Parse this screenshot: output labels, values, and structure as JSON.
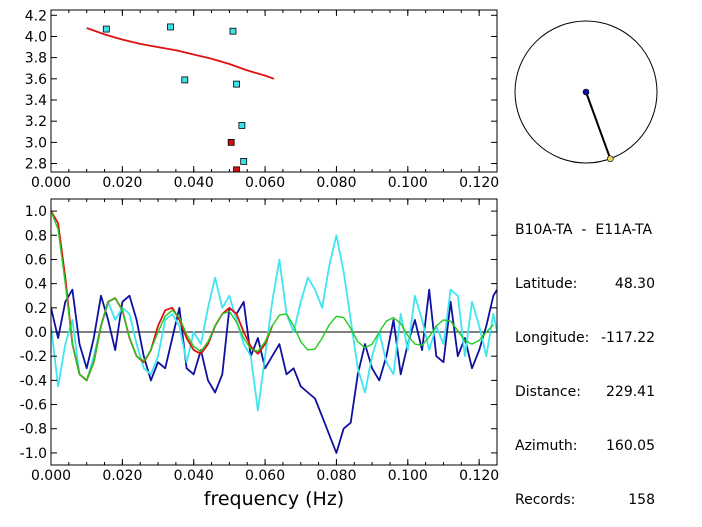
{
  "info": {
    "pair_label": "B10A-TA  -  E11A-TA",
    "rows": [
      {
        "key": "Latitude:",
        "value": "48.30"
      },
      {
        "key": "Longitude:",
        "value": "-117.22"
      },
      {
        "key": "Distance:",
        "value": "229.41"
      },
      {
        "key": "Azimuth:",
        "value": "160.05"
      },
      {
        "key": "Records:",
        "value": "158"
      }
    ]
  },
  "colors": {
    "cyan": "#3fe6f0",
    "red": "#e01010",
    "green": "#20cc20",
    "blue": "#1010a0",
    "marker_cyan": "#40e0e8",
    "marker_red": "#d01010",
    "gold": "#e8d060"
  },
  "chart_data": [
    {
      "type": "scatter",
      "title": "",
      "xlabel": "",
      "ylabel": "",
      "xlim": [
        0.0,
        0.125
      ],
      "ylim": [
        2.72,
        4.25
      ],
      "xticks": [
        "0.000",
        "0.020",
        "0.040",
        "0.060",
        "0.080",
        "0.100",
        "0.120"
      ],
      "yticks": [
        "2.8",
        "3.0",
        "3.2",
        "3.4",
        "3.6",
        "3.8",
        "4.0",
        "4.2"
      ],
      "series": [
        {
          "kind": "markers",
          "color": "cyan",
          "x": [
            0.0155,
            0.0335,
            0.051,
            0.0375,
            0.052,
            0.0535,
            0.054
          ],
          "y": [
            4.07,
            4.09,
            4.05,
            3.59,
            3.55,
            3.16,
            2.82
          ]
        },
        {
          "kind": "markers",
          "color": "red",
          "x": [
            0.0505,
            0.052
          ],
          "y": [
            3.0,
            2.74
          ]
        },
        {
          "kind": "line",
          "color": "red",
          "x": [
            0.01,
            0.015,
            0.02,
            0.025,
            0.03,
            0.035,
            0.04,
            0.045,
            0.05,
            0.055,
            0.06,
            0.0625
          ],
          "y": [
            4.08,
            4.02,
            3.97,
            3.93,
            3.9,
            3.87,
            3.83,
            3.79,
            3.74,
            3.68,
            3.63,
            3.6
          ]
        }
      ]
    },
    {
      "type": "line",
      "title": "",
      "xlabel": "frequency (Hz)",
      "ylabel": "",
      "xlim": [
        0.0,
        0.125
      ],
      "ylim": [
        -1.1,
        1.1
      ],
      "xticks": [
        "0.000",
        "0.020",
        "0.040",
        "0.060",
        "0.080",
        "0.100",
        "0.120"
      ],
      "yticks": [
        "1.0",
        "0.8",
        "0.6",
        "0.4",
        "0.2",
        "0.0",
        "-0.2",
        "-0.4",
        "-0.6",
        "-0.8",
        "-1.0"
      ],
      "zero_line": true,
      "series": [
        {
          "color": "blue",
          "x": [
            0.0,
            0.002,
            0.004,
            0.006,
            0.008,
            0.01,
            0.012,
            0.014,
            0.016,
            0.018,
            0.02,
            0.022,
            0.024,
            0.026,
            0.028,
            0.03,
            0.032,
            0.034,
            0.036,
            0.038,
            0.04,
            0.042,
            0.044,
            0.046,
            0.048,
            0.05,
            0.052,
            0.054,
            0.056,
            0.058,
            0.06,
            0.062,
            0.064,
            0.066,
            0.068,
            0.07,
            0.072,
            0.074,
            0.076,
            0.078,
            0.08,
            0.082,
            0.084,
            0.086,
            0.088,
            0.09,
            0.092,
            0.094,
            0.096,
            0.098,
            0.1,
            0.102,
            0.104,
            0.106,
            0.108,
            0.11,
            0.112,
            0.114,
            0.116,
            0.118,
            0.12,
            0.122,
            0.124,
            0.125
          ],
          "y": [
            0.2,
            -0.05,
            0.25,
            0.35,
            -0.1,
            -0.3,
            -0.05,
            0.3,
            0.1,
            -0.15,
            0.25,
            0.3,
            0.1,
            -0.2,
            -0.4,
            -0.25,
            -0.3,
            -0.05,
            0.2,
            -0.3,
            -0.35,
            -0.15,
            -0.4,
            -0.5,
            -0.35,
            0.2,
            0.15,
            0.25,
            -0.2,
            -0.05,
            -0.3,
            -0.2,
            -0.1,
            -0.35,
            -0.3,
            -0.45,
            -0.5,
            -0.55,
            -0.7,
            -0.85,
            -1.0,
            -0.8,
            -0.75,
            -0.35,
            -0.1,
            -0.3,
            -0.4,
            -0.2,
            0.1,
            -0.35,
            -0.1,
            0.1,
            -0.15,
            0.35,
            -0.2,
            -0.25,
            0.25,
            -0.2,
            -0.05,
            -0.3,
            -0.15,
            0.05,
            0.3,
            0.35
          ]
        },
        {
          "color": "cyan",
          "x": [
            0.0,
            0.002,
            0.004,
            0.006,
            0.008,
            0.01,
            0.012,
            0.014,
            0.016,
            0.018,
            0.02,
            0.022,
            0.024,
            0.026,
            0.028,
            0.03,
            0.032,
            0.034,
            0.036,
            0.038,
            0.04,
            0.042,
            0.044,
            0.046,
            0.048,
            0.05,
            0.052,
            0.054,
            0.056,
            0.058,
            0.06,
            0.062,
            0.064,
            0.066,
            0.068,
            0.07,
            0.072,
            0.074,
            0.076,
            0.078,
            0.08,
            0.082,
            0.084,
            0.086,
            0.088,
            0.09,
            0.092,
            0.094,
            0.096,
            0.098,
            0.1,
            0.102,
            0.104,
            0.106,
            0.108,
            0.11,
            0.112,
            0.114,
            0.116,
            0.118,
            0.12,
            0.122,
            0.124,
            0.125
          ],
          "y": [
            0.05,
            -0.45,
            -0.1,
            0.1,
            -0.35,
            -0.4,
            -0.2,
            0.05,
            0.25,
            0.1,
            0.2,
            0.15,
            -0.1,
            -0.3,
            -0.35,
            -0.2,
            0.1,
            0.15,
            0.05,
            -0.25,
            0.0,
            -0.1,
            0.2,
            0.45,
            0.2,
            0.3,
            0.1,
            -0.1,
            -0.2,
            -0.65,
            -0.2,
            0.25,
            0.6,
            0.15,
            0.0,
            0.25,
            0.45,
            0.35,
            0.2,
            0.55,
            0.8,
            0.5,
            0.1,
            -0.3,
            -0.5,
            -0.2,
            0.0,
            -0.25,
            -0.35,
            0.15,
            -0.15,
            0.3,
            0.1,
            -0.15,
            0.05,
            -0.1,
            0.35,
            0.3,
            -0.2,
            0.25,
            0.05,
            -0.2,
            0.15,
            0.0
          ]
        },
        {
          "color": "red",
          "x": [
            0.0,
            0.002,
            0.004,
            0.006,
            0.008,
            0.01,
            0.012,
            0.014,
            0.016,
            0.018,
            0.02,
            0.022,
            0.024,
            0.026,
            0.028,
            0.03,
            0.032,
            0.034,
            0.036,
            0.038,
            0.04,
            0.042,
            0.044,
            0.046,
            0.048,
            0.05,
            0.052,
            0.054,
            0.056,
            0.058,
            0.06,
            0.062
          ],
          "y": [
            1.0,
            0.9,
            0.45,
            -0.1,
            -0.35,
            -0.4,
            -0.25,
            0.05,
            0.25,
            0.28,
            0.18,
            -0.05,
            -0.2,
            -0.25,
            -0.15,
            0.05,
            0.18,
            0.2,
            0.1,
            -0.05,
            -0.15,
            -0.18,
            -0.1,
            0.05,
            0.15,
            0.2,
            0.15,
            0.0,
            -0.12,
            -0.18,
            -0.1,
            0.05
          ]
        },
        {
          "color": "green",
          "x": [
            0.0,
            0.002,
            0.004,
            0.006,
            0.008,
            0.01,
            0.012,
            0.014,
            0.016,
            0.018,
            0.02,
            0.022,
            0.024,
            0.026,
            0.028,
            0.03,
            0.032,
            0.034,
            0.036,
            0.038,
            0.04,
            0.042,
            0.044,
            0.046,
            0.048,
            0.05,
            0.052,
            0.054,
            0.056,
            0.058,
            0.06,
            0.062,
            0.064,
            0.066,
            0.068,
            0.07,
            0.072,
            0.074,
            0.076,
            0.078,
            0.08,
            0.082,
            0.084,
            0.086,
            0.088,
            0.09,
            0.092,
            0.094,
            0.096,
            0.098,
            0.1,
            0.102,
            0.104,
            0.106,
            0.108,
            0.11,
            0.112,
            0.114,
            0.116,
            0.118,
            0.12,
            0.122,
            0.124
          ],
          "y": [
            1.0,
            0.85,
            0.4,
            -0.1,
            -0.35,
            -0.4,
            -0.25,
            0.05,
            0.25,
            0.28,
            0.18,
            -0.05,
            -0.2,
            -0.24,
            -0.15,
            0.0,
            0.13,
            0.18,
            0.12,
            -0.02,
            -0.12,
            -0.16,
            -0.08,
            0.05,
            0.15,
            0.17,
            0.08,
            -0.05,
            -0.14,
            -0.16,
            -0.08,
            0.05,
            0.14,
            0.15,
            0.05,
            -0.08,
            -0.15,
            -0.14,
            -0.05,
            0.06,
            0.13,
            0.12,
            0.03,
            -0.08,
            -0.13,
            -0.1,
            0.0,
            0.09,
            0.12,
            0.07,
            -0.03,
            -0.1,
            -0.11,
            -0.04,
            0.05,
            0.1,
            0.09,
            0.01,
            -0.07,
            -0.1,
            -0.07,
            0.0,
            0.06
          ]
        }
      ]
    },
    {
      "type": "scatter",
      "title": "",
      "xlabel": "",
      "ylabel": "",
      "xlim": [
        -1,
        1
      ],
      "ylim": [
        -1,
        1
      ],
      "series": [
        {
          "kind": "markers",
          "color": "blue",
          "x": [
            0.0
          ],
          "y": [
            0.0
          ]
        },
        {
          "kind": "markers",
          "color": "gold",
          "x": [
            0.342
          ],
          "y": [
            -0.94
          ]
        }
      ]
    }
  ]
}
